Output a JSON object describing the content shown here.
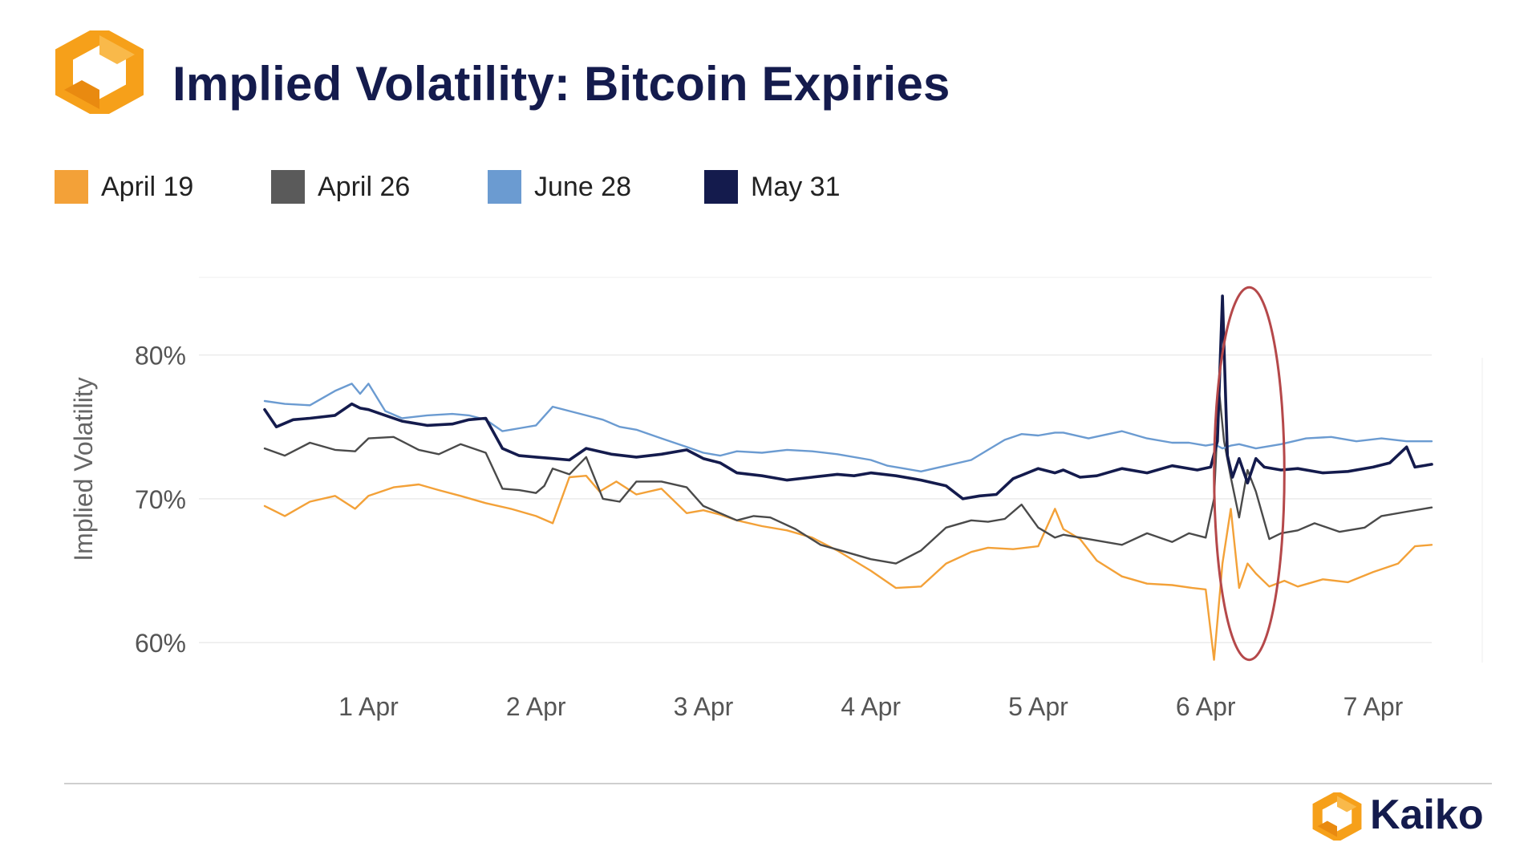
{
  "header": {
    "title": "Implied Volatility: Bitcoin Expiries",
    "brand": "Kaiko"
  },
  "colors": {
    "brand_orange": "#f6a01a",
    "title_navy": "#141b4d",
    "highlight_red": "#b5484a"
  },
  "chart_data": {
    "type": "line",
    "title": "Implied Volatility: Bitcoin Expiries",
    "ylabel": "Implied Volatility",
    "xlabel": "",
    "ylim": [
      57,
      86
    ],
    "xlim": [
      -0.62,
      6.35
    ],
    "yticks": [
      60,
      70,
      80
    ],
    "ytick_labels": [
      "60%",
      "70%",
      "80%"
    ],
    "xticks": [
      0,
      1,
      2,
      3,
      4,
      5,
      6
    ],
    "xtick_labels": [
      "1 Apr",
      "2 Apr",
      "3 Apr",
      "4 Apr",
      "5 Apr",
      "6 Apr",
      "7 Apr"
    ],
    "legend": [
      "April 19",
      "April 26",
      "June 28",
      "May 31"
    ],
    "legend_position": "top-left",
    "annotation": {
      "type": "ellipse-highlight",
      "x_range": [
        5.05,
        5.47
      ],
      "y_range": [
        58.8,
        84.7
      ]
    },
    "series": [
      {
        "name": "April 19",
        "color": "#f3a138",
        "x": [
          -0.62,
          -0.5,
          -0.35,
          -0.2,
          -0.08,
          0,
          0.15,
          0.3,
          0.42,
          0.55,
          0.7,
          0.85,
          1,
          1.1,
          1.2,
          1.3,
          1.38,
          1.48,
          1.6,
          1.75,
          1.9,
          2,
          2.1,
          2.2,
          2.35,
          2.5,
          2.65,
          2.8,
          3,
          3.15,
          3.3,
          3.45,
          3.6,
          3.7,
          3.85,
          4,
          4.1,
          4.15,
          4.25,
          4.35,
          4.5,
          4.65,
          4.8,
          4.92,
          5,
          5.05,
          5.1,
          5.15,
          5.2,
          5.25,
          5.3,
          5.38,
          5.47,
          5.55,
          5.7,
          5.85,
          6,
          6.15,
          6.25,
          6.35
        ],
        "y": [
          69.5,
          68.8,
          69.8,
          70.2,
          69.3,
          70.2,
          70.8,
          71,
          70.6,
          70.2,
          69.7,
          69.3,
          68.8,
          68.3,
          71.5,
          71.6,
          70.5,
          71.2,
          70.3,
          70.7,
          69,
          69.2,
          68.9,
          68.5,
          68.1,
          67.8,
          67.3,
          66.4,
          65,
          63.8,
          63.9,
          65.5,
          66.3,
          66.6,
          66.5,
          66.7,
          69.3,
          67.9,
          67.2,
          65.7,
          64.6,
          64.1,
          64,
          63.8,
          63.7,
          58.8,
          65.5,
          69.3,
          63.8,
          65.5,
          64.8,
          63.9,
          64.3,
          63.9,
          64.4,
          64.2,
          64.9,
          65.5,
          66.7,
          66.8
        ]
      },
      {
        "name": "April 26",
        "color": "#4a4a4a",
        "x": [
          -0.62,
          -0.5,
          -0.35,
          -0.2,
          -0.08,
          0,
          0.15,
          0.3,
          0.42,
          0.55,
          0.7,
          0.8,
          0.9,
          1,
          1.05,
          1.1,
          1.2,
          1.3,
          1.4,
          1.5,
          1.6,
          1.75,
          1.9,
          2,
          2.1,
          2.2,
          2.3,
          2.4,
          2.55,
          2.7,
          2.85,
          3,
          3.15,
          3.3,
          3.45,
          3.6,
          3.7,
          3.8,
          3.9,
          4,
          4.1,
          4.15,
          4.25,
          4.35,
          4.5,
          4.65,
          4.8,
          4.9,
          5,
          5.05,
          5.08,
          5.11,
          5.15,
          5.2,
          5.25,
          5.3,
          5.38,
          5.45,
          5.55,
          5.65,
          5.8,
          5.95,
          6.05,
          6.2,
          6.35
        ],
        "y": [
          73.5,
          73,
          73.9,
          73.4,
          73.3,
          74.2,
          74.3,
          73.4,
          73.1,
          73.8,
          73.2,
          70.7,
          70.6,
          70.4,
          70.9,
          72.1,
          71.7,
          72.9,
          70,
          69.8,
          71.2,
          71.2,
          70.8,
          69.5,
          69,
          68.5,
          68.8,
          68.7,
          67.9,
          66.8,
          66.3,
          65.8,
          65.5,
          66.4,
          68,
          68.5,
          68.4,
          68.6,
          69.6,
          68,
          67.3,
          67.5,
          67.3,
          67.1,
          66.8,
          67.6,
          67,
          67.6,
          67.3,
          70,
          77.5,
          74,
          71.5,
          68.7,
          72,
          70.5,
          67.2,
          67.6,
          67.8,
          68.3,
          67.7,
          68,
          68.8,
          69.1,
          69.4
        ]
      },
      {
        "name": "June 28",
        "color": "#6b9bd1",
        "x": [
          -0.62,
          -0.5,
          -0.35,
          -0.2,
          -0.1,
          -0.05,
          0,
          0.1,
          0.2,
          0.35,
          0.5,
          0.6,
          0.7,
          0.8,
          0.9,
          1,
          1.1,
          1.2,
          1.3,
          1.4,
          1.5,
          1.6,
          1.75,
          1.9,
          2,
          2.1,
          2.2,
          2.35,
          2.5,
          2.65,
          2.8,
          3,
          3.1,
          3.2,
          3.3,
          3.45,
          3.6,
          3.7,
          3.8,
          3.9,
          4,
          4.1,
          4.15,
          4.3,
          4.5,
          4.65,
          4.8,
          4.9,
          5,
          5.05,
          5.1,
          5.15,
          5.2,
          5.3,
          5.45,
          5.6,
          5.75,
          5.9,
          6.05,
          6.2,
          6.35
        ],
        "y": [
          76.8,
          76.6,
          76.5,
          77.5,
          78,
          77.3,
          78,
          76.1,
          75.6,
          75.8,
          75.9,
          75.8,
          75.5,
          74.7,
          74.9,
          75.1,
          76.4,
          76.1,
          75.8,
          75.5,
          75,
          74.8,
          74.2,
          73.6,
          73.2,
          73,
          73.3,
          73.2,
          73.4,
          73.3,
          73.1,
          72.7,
          72.3,
          72.1,
          71.9,
          72.3,
          72.7,
          73.4,
          74.1,
          74.5,
          74.4,
          74.6,
          74.6,
          74.2,
          74.7,
          74.2,
          73.9,
          73.9,
          73.7,
          73.8,
          73.5,
          73.7,
          73.8,
          73.5,
          73.8,
          74.2,
          74.3,
          74,
          74.2,
          74,
          74
        ]
      },
      {
        "name": "May 31",
        "color": "#141b4d",
        "x": [
          -0.62,
          -0.55,
          -0.45,
          -0.35,
          -0.2,
          -0.1,
          -0.05,
          0,
          0.1,
          0.2,
          0.35,
          0.5,
          0.6,
          0.7,
          0.8,
          0.9,
          1,
          1.1,
          1.2,
          1.3,
          1.45,
          1.6,
          1.75,
          1.9,
          2,
          2.1,
          2.2,
          2.35,
          2.5,
          2.65,
          2.8,
          2.9,
          3,
          3.15,
          3.3,
          3.45,
          3.55,
          3.65,
          3.75,
          3.85,
          4,
          4.1,
          4.15,
          4.25,
          4.35,
          4.5,
          4.65,
          4.8,
          4.95,
          5.03,
          5.07,
          5.1,
          5.13,
          5.16,
          5.2,
          5.25,
          5.3,
          5.35,
          5.45,
          5.55,
          5.7,
          5.85,
          6,
          6.1,
          6.2,
          6.25,
          6.35
        ],
        "y": [
          76.2,
          75,
          75.5,
          75.6,
          75.8,
          76.6,
          76.3,
          76.2,
          75.8,
          75.4,
          75.1,
          75.2,
          75.5,
          75.6,
          73.5,
          73,
          72.9,
          72.8,
          72.7,
          73.5,
          73.1,
          72.9,
          73.1,
          73.4,
          72.8,
          72.5,
          71.8,
          71.6,
          71.3,
          71.5,
          71.7,
          71.6,
          71.8,
          71.6,
          71.3,
          70.9,
          70,
          70.2,
          70.3,
          71.4,
          72.1,
          71.8,
          72,
          71.5,
          71.6,
          72.1,
          71.8,
          72.3,
          72,
          72.2,
          74,
          84.1,
          73,
          71.5,
          72.8,
          71.1,
          72.8,
          72.2,
          72,
          72.1,
          71.8,
          71.9,
          72.2,
          72.5,
          73.6,
          72.2,
          72.4
        ]
      }
    ]
  }
}
